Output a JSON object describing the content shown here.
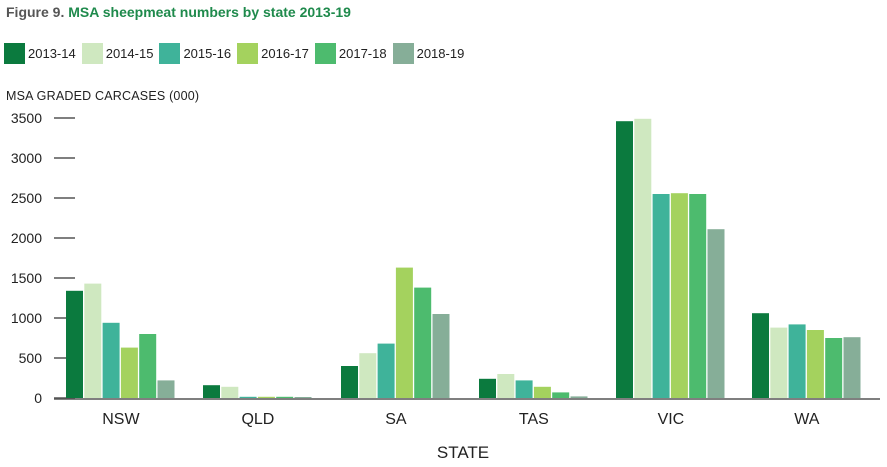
{
  "figure": {
    "prefix": "Figure 9.",
    "title": "MSA sheepmeat numbers by state 2013-19"
  },
  "colors": {
    "title_green": "#1f8a4c",
    "axis": "#555555"
  },
  "chart_data": {
    "type": "bar",
    "title": "MSA sheepmeat numbers by state 2013-19",
    "xlabel": "STATE",
    "ylabel": "MSA GRADED CARCASES (000)",
    "ylim": [
      0,
      3500
    ],
    "yticks": [
      0,
      500,
      1000,
      1500,
      2000,
      2500,
      3000,
      3500
    ],
    "grid": false,
    "legend_position": "top-left",
    "categories": [
      "NSW",
      "QLD",
      "SA",
      "TAS",
      "VIC",
      "WA"
    ],
    "series": [
      {
        "name": "2013-14",
        "color": "#0b7a3e",
        "values": [
          1340,
          160,
          400,
          240,
          3460,
          1060
        ]
      },
      {
        "name": "2014-15",
        "color": "#cfe8c0",
        "values": [
          1430,
          140,
          560,
          300,
          3490,
          880
        ]
      },
      {
        "name": "2015-16",
        "color": "#3fb39a",
        "values": [
          940,
          15,
          680,
          220,
          2550,
          920
        ]
      },
      {
        "name": "2016-17",
        "color": "#a4d25e",
        "values": [
          630,
          15,
          1630,
          140,
          2560,
          850
        ]
      },
      {
        "name": "2017-18",
        "color": "#4dbb6e",
        "values": [
          800,
          15,
          1380,
          70,
          2550,
          750
        ]
      },
      {
        "name": "2018-19",
        "color": "#86ae98",
        "values": [
          220,
          10,
          1050,
          20,
          2110,
          760
        ]
      }
    ]
  }
}
